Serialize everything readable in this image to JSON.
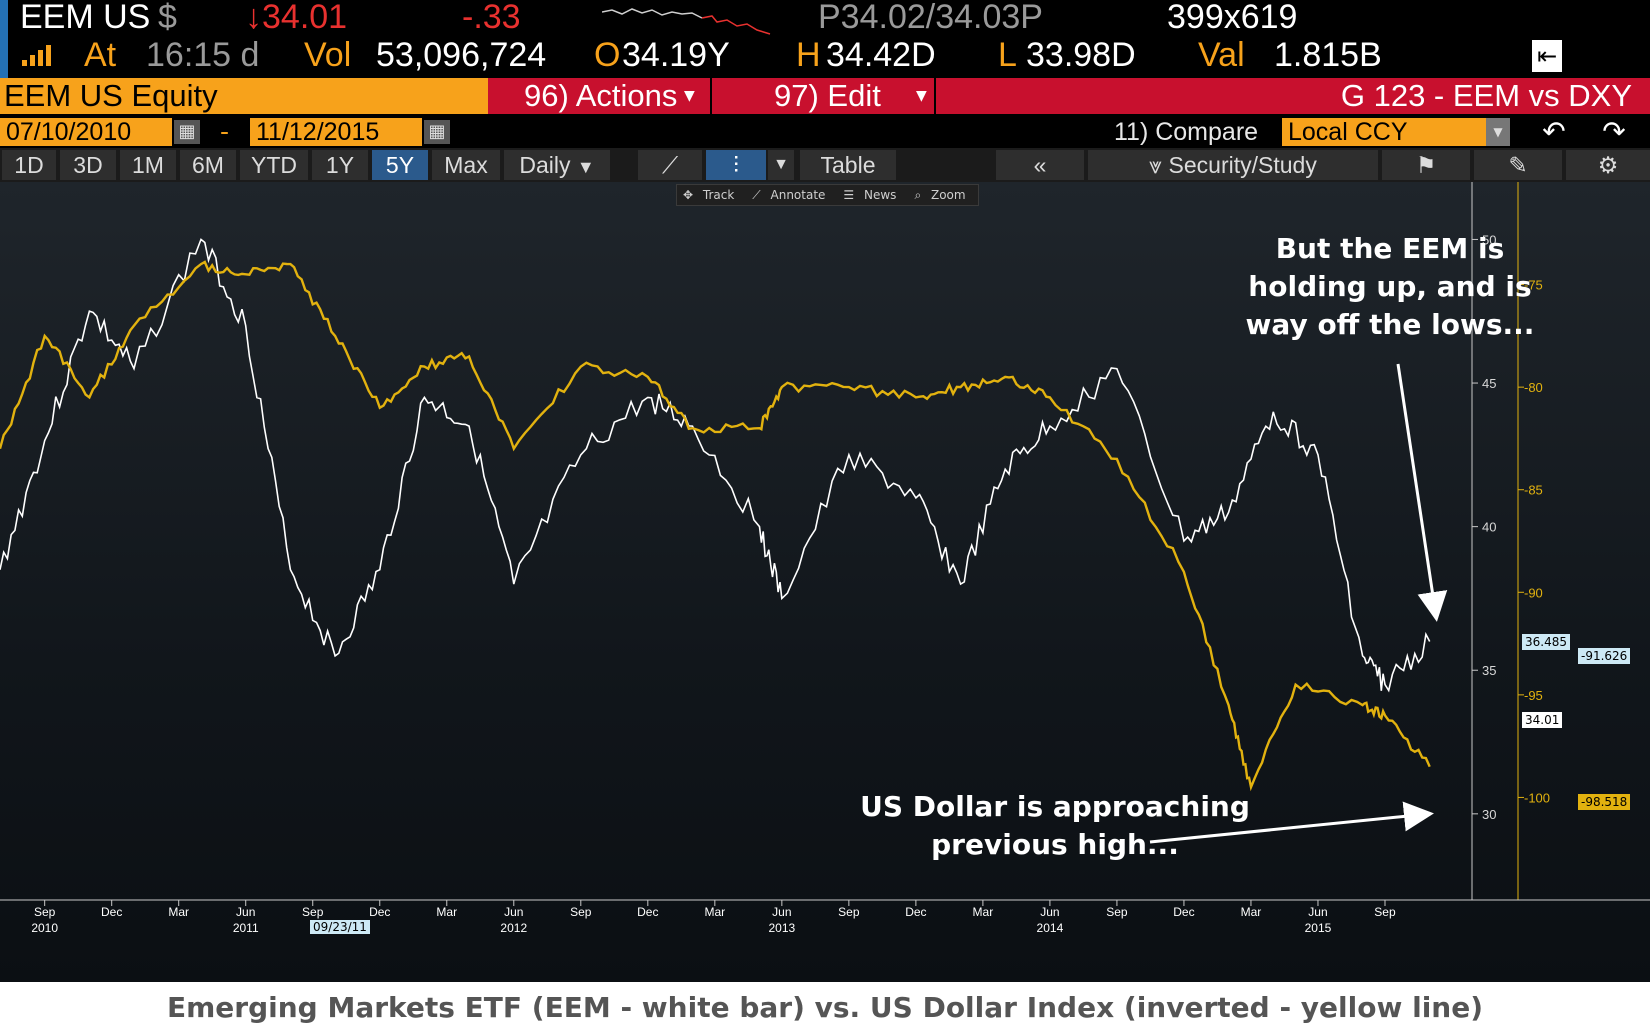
{
  "header": {
    "ticker": "EEM US",
    "currency": "$",
    "last_price": "↓34.01",
    "change": "-.33",
    "bid_ask": "P34.02/34.03P",
    "size": "399x619",
    "at_label": "At",
    "time": "16:15 d",
    "vol_label": "Vol",
    "volume": "53,096,724",
    "open_label": "O",
    "open": "34.19Y",
    "high_label": "H",
    "high": "34.42D",
    "low_label": "L",
    "low": "33.98D",
    "val_label": "Val",
    "value": "1.815B"
  },
  "toolbar": {
    "security": "EEM US Equity",
    "actions": "96) Actions",
    "edit": "97) Edit",
    "chart_title": "G 123 - EEM vs DXY",
    "start_date": "07/10/2010",
    "date_sep": "-",
    "end_date": "11/12/2015",
    "compare_label": "11) Compare",
    "compare_value": "Local CCY"
  },
  "periods": [
    "1D",
    "3D",
    "1M",
    "6M",
    "YTD",
    "1Y",
    "5Y",
    "Max"
  ],
  "selected_period": "5Y",
  "frequency": "Daily",
  "table_label": "Table",
  "security_study": "Security/Study",
  "tools": {
    "track": "Track",
    "annotate": "Annotate",
    "news": "News",
    "zoom": "Zoom"
  },
  "annotations": {
    "top_line1": "But the EEM is",
    "top_line2": "holding up, and is",
    "top_line3": "way off the lows...",
    "bottom_line1": "US Dollar is approaching",
    "bottom_line2": "previous high..."
  },
  "caption": "Emerging Markets ETF (EEM - white bar) vs. US Dollar Index (inverted - yellow line)",
  "crosshair_date": "09/23/11",
  "last_labels": {
    "eem_high": "36.485",
    "eem_last": "34.01",
    "dxy_a": "-91.626",
    "dxy_b": "-98.518"
  },
  "chart_data": {
    "type": "line",
    "x_months": [
      "Sep",
      "Dec",
      "Mar",
      "Jun",
      "Sep",
      "Dec",
      "Mar",
      "Jun",
      "Sep",
      "Dec",
      "Mar",
      "Jun",
      "Sep",
      "Dec",
      "Mar",
      "Jun",
      "Sep",
      "Dec",
      "Mar",
      "Jun",
      "Sep"
    ],
    "x_years": [
      "2010",
      "2011",
      "2012",
      "2013",
      "2014",
      "2015"
    ],
    "y_left_ticks": [
      "50",
      "45",
      "40",
      "35",
      "30"
    ],
    "y_right_ticks": [
      "-75",
      "-80",
      "-85",
      "-90",
      "-95",
      "-100"
    ],
    "series": [
      {
        "name": "EEM",
        "color": "#ffffff",
        "x": [
          "2010-07",
          "2010-09",
          "2010-11",
          "2011-01",
          "2011-04",
          "2011-06",
          "2011-08",
          "2011-10",
          "2011-12",
          "2012-02",
          "2012-04",
          "2012-06",
          "2012-09",
          "2012-12",
          "2013-02",
          "2013-05",
          "2013-06",
          "2013-09",
          "2013-12",
          "2014-02",
          "2014-04",
          "2014-06",
          "2014-09",
          "2014-12",
          "2015-02",
          "2015-04",
          "2015-06",
          "2015-08",
          "2015-09",
          "2015-11"
        ],
        "values": [
          38.5,
          43.0,
          47.5,
          45.5,
          50.0,
          47.0,
          38.5,
          35.5,
          38.5,
          44.5,
          43.5,
          38.0,
          42.5,
          44.5,
          43.5,
          40.0,
          37.5,
          42.5,
          41.0,
          38.0,
          42.0,
          43.5,
          45.5,
          39.5,
          40.5,
          44.0,
          42.5,
          35.5,
          34.5,
          36.0
        ]
      },
      {
        "name": "DXY (inverted)",
        "color": "#e2b20f",
        "x": [
          "2010-07",
          "2010-09",
          "2010-11",
          "2011-01",
          "2011-04",
          "2011-06",
          "2011-08",
          "2011-10",
          "2011-12",
          "2012-02",
          "2012-04",
          "2012-06",
          "2012-09",
          "2012-12",
          "2013-02",
          "2013-05",
          "2013-06",
          "2013-09",
          "2013-12",
          "2014-02",
          "2014-04",
          "2014-06",
          "2014-09",
          "2014-12",
          "2015-02",
          "2015-03",
          "2015-05",
          "2015-08",
          "2015-09",
          "2015-11"
        ],
        "values": [
          -83.0,
          -77.5,
          -80.5,
          -77.0,
          -74.0,
          -74.5,
          -74.0,
          -77.5,
          -81.0,
          -79.0,
          -78.5,
          -83.0,
          -79.0,
          -79.5,
          -82.0,
          -82.0,
          -80.0,
          -80.0,
          -80.5,
          -80.0,
          -79.5,
          -80.5,
          -83.5,
          -89.0,
          -95.5,
          -99.5,
          -94.5,
          -95.5,
          -96.0,
          -98.5
        ]
      }
    ],
    "left_ylim": [
      27,
      52
    ],
    "right_ylim": [
      -105,
      -70
    ],
    "grid": false
  }
}
